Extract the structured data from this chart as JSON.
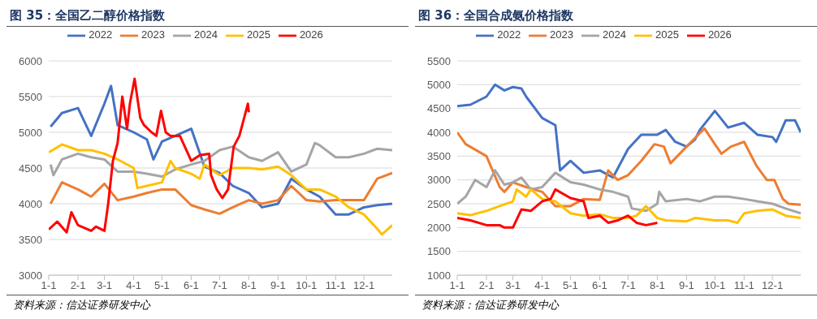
{
  "chart_data": [
    {
      "type": "line",
      "title": "图 35：全国乙二醇价格指数",
      "annotations": [
        "资料来源：信达证券研发中心"
      ],
      "legend": "top",
      "grid": "y",
      "xlim": [
        "--01-01",
        "--12-31"
      ],
      "xticks": [
        {
          "value": "--01-01",
          "label": "1-1"
        },
        {
          "value": "--02-01",
          "label": "2-1"
        },
        {
          "value": "--03-01",
          "label": "3-1"
        },
        {
          "value": "--04-01",
          "label": "4-1"
        },
        {
          "value": "--05-01",
          "label": "5-1"
        },
        {
          "value": "--06-01",
          "label": "6-1"
        },
        {
          "value": "--07-01",
          "label": "7-1"
        },
        {
          "value": "--08-01",
          "label": "8-1"
        },
        {
          "value": "--09-01",
          "label": "9-1"
        },
        {
          "value": "--10-01",
          "label": "10-1"
        },
        {
          "value": "--11-01",
          "label": "11-1"
        },
        {
          "value": "--12-01",
          "label": "12-1"
        }
      ],
      "ylim": [
        3000,
        6000
      ],
      "yticks": [
        3000,
        3500,
        4000,
        4500,
        5000,
        5500,
        6000
      ],
      "series": [
        {
          "name": "2022",
          "color": "#4472c4",
          "x": [
            "--01-03",
            "--01-15",
            "--02-01",
            "--02-15",
            "--03-01",
            "--03-08",
            "--03-15",
            "--04-01",
            "--04-15",
            "--04-22",
            "--05-01",
            "--05-15",
            "--06-01",
            "--06-15",
            "--07-01",
            "--07-15",
            "--08-01",
            "--08-15",
            "--09-01",
            "--09-15",
            "--10-01",
            "--10-15",
            "--11-01",
            "--11-15",
            "--12-01",
            "--12-15",
            "--12-31"
          ],
          "values": [
            5080,
            5270,
            5340,
            4950,
            5400,
            5650,
            5100,
            5000,
            4900,
            4620,
            4870,
            4950,
            5050,
            4520,
            4430,
            4250,
            4150,
            3950,
            4000,
            4350,
            4200,
            4100,
            3850,
            3850,
            3950,
            3980,
            4000
          ]
        },
        {
          "name": "2023",
          "color": "#ed7d31",
          "x": [
            "--01-03",
            "--01-15",
            "--02-01",
            "--02-15",
            "--03-01",
            "--03-15",
            "--04-01",
            "--04-15",
            "--05-01",
            "--05-15",
            "--06-01",
            "--06-15",
            "--07-01",
            "--07-15",
            "--08-01",
            "--08-15",
            "--09-01",
            "--09-15",
            "--10-01",
            "--10-15",
            "--11-01",
            "--11-15",
            "--12-01",
            "--12-15",
            "--12-31"
          ],
          "values": [
            4000,
            4300,
            4200,
            4100,
            4280,
            4050,
            4100,
            4150,
            4200,
            4200,
            3980,
            3920,
            3860,
            3950,
            4050,
            4000,
            4050,
            4250,
            4050,
            4030,
            4050,
            4050,
            4050,
            4350,
            4430
          ]
        },
        {
          "name": "2024",
          "color": "#a5a5a5",
          "x": [
            "--01-03",
            "--01-06",
            "--01-15",
            "--02-01",
            "--02-15",
            "--03-01",
            "--03-15",
            "--04-01",
            "--04-15",
            "--05-01",
            "--05-15",
            "--06-01",
            "--06-15",
            "--07-01",
            "--07-15",
            "--08-01",
            "--08-15",
            "--09-01",
            "--09-15",
            "--10-01",
            "--10-10",
            "--10-15",
            "--11-01",
            "--11-15",
            "--12-01",
            "--12-15",
            "--12-31"
          ],
          "values": [
            4550,
            4400,
            4620,
            4700,
            4650,
            4620,
            4450,
            4450,
            4420,
            4380,
            4480,
            4550,
            4600,
            4750,
            4800,
            4650,
            4600,
            4720,
            4450,
            4550,
            4850,
            4820,
            4650,
            4650,
            4700,
            4770,
            4750
          ]
        },
        {
          "name": "2025",
          "color": "#ffc000",
          "x": [
            "--01-01",
            "--01-15",
            "--02-01",
            "--02-15",
            "--03-01",
            "--03-15",
            "--04-01",
            "--04-05",
            "--04-15",
            "--05-01",
            "--05-10",
            "--05-15",
            "--06-01",
            "--06-10",
            "--06-15",
            "--07-01",
            "--07-15",
            "--08-01",
            "--08-15",
            "--09-01",
            "--09-15",
            "--10-01",
            "--10-15",
            "--11-01",
            "--11-15",
            "--12-01",
            "--12-15",
            "--12-20",
            "--12-31"
          ],
          "values": [
            4720,
            4830,
            4750,
            4750,
            4700,
            4620,
            4500,
            4220,
            4250,
            4300,
            4600,
            4500,
            4420,
            4350,
            4550,
            4400,
            4500,
            4500,
            4480,
            4520,
            4400,
            4200,
            4200,
            4100,
            3950,
            3850,
            3650,
            3570,
            3700
          ]
        },
        {
          "name": "2026",
          "color": "#ff0000",
          "x": [
            "--01-01",
            "--01-10",
            "--01-20",
            "--01-25",
            "--02-01",
            "--02-10",
            "--02-15",
            "--02-20",
            "--03-01",
            "--03-05",
            "--03-10",
            "--03-15",
            "--03-20",
            "--03-25",
            "--03-28",
            "--04-02",
            "--04-08",
            "--04-12",
            "--04-20",
            "--04-25",
            "--04-30",
            "--05-05",
            "--05-10",
            "--05-20",
            "--06-01",
            "--06-10",
            "--06-20",
            "--06-22",
            "--06-28",
            "--07-04",
            "--07-10",
            "--07-16",
            "--07-22",
            "--07-26",
            "--07-31",
            "--08-01"
          ],
          "values": [
            3640,
            3750,
            3600,
            3880,
            3700,
            3650,
            3620,
            3680,
            3620,
            4000,
            4600,
            4850,
            5500,
            5050,
            5400,
            5750,
            5200,
            5100,
            5000,
            4950,
            5300,
            5000,
            4950,
            4950,
            4600,
            4680,
            4700,
            4400,
            4200,
            4080,
            4200,
            4800,
            4950,
            5150,
            5400,
            5280
          ]
        }
      ]
    },
    {
      "type": "line",
      "title": "图 36：全国合成氨价格指数",
      "annotations": [
        "资料来源：信达证券研发中心"
      ],
      "legend": "top",
      "grid": "y",
      "xlim": [
        "--01-01",
        "--12-31"
      ],
      "xticks": [
        {
          "value": "--01-01",
          "label": "1-1"
        },
        {
          "value": "--02-01",
          "label": "2-1"
        },
        {
          "value": "--03-01",
          "label": "3-1"
        },
        {
          "value": "--04-01",
          "label": "4-1"
        },
        {
          "value": "--05-01",
          "label": "5-1"
        },
        {
          "value": "--06-01",
          "label": "6-1"
        },
        {
          "value": "--07-01",
          "label": "7-1"
        },
        {
          "value": "--08-01",
          "label": "8-1"
        },
        {
          "value": "--09-01",
          "label": "9-1"
        },
        {
          "value": "--10-01",
          "label": "10-1"
        },
        {
          "value": "--11-01",
          "label": "11-1"
        },
        {
          "value": "--12-01",
          "label": "12-1"
        }
      ],
      "ylim": [
        1000,
        5500
      ],
      "yticks": [
        1000,
        1500,
        2000,
        2500,
        3000,
        3500,
        4000,
        4500,
        5000,
        5500
      ],
      "series": [
        {
          "name": "2022",
          "color": "#4472c4",
          "x": [
            "--01-01",
            "--01-15",
            "--02-01",
            "--02-10",
            "--02-20",
            "--03-01",
            "--03-10",
            "--03-15",
            "--04-01",
            "--04-15",
            "--04-20",
            "--05-01",
            "--05-15",
            "--06-01",
            "--06-15",
            "--07-01",
            "--07-15",
            "--08-01",
            "--08-10",
            "--08-20",
            "--09-01",
            "--09-10",
            "--09-15",
            "--10-01",
            "--10-15",
            "--11-01",
            "--11-15",
            "--12-01",
            "--12-05",
            "--12-15",
            "--12-25",
            "--12-31"
          ],
          "values": [
            4550,
            4580,
            4750,
            5000,
            4880,
            4950,
            4920,
            4750,
            4300,
            4150,
            3200,
            3400,
            3150,
            3200,
            3050,
            3650,
            3950,
            3950,
            4050,
            3800,
            3700,
            3850,
            4050,
            4450,
            4100,
            4200,
            3950,
            3900,
            3800,
            4250,
            4250,
            4000
          ]
        },
        {
          "name": "2023",
          "color": "#ed7d31",
          "x": [
            "--01-01",
            "--01-10",
            "--02-01",
            "--02-15",
            "--02-20",
            "--03-01",
            "--03-15",
            "--04-01",
            "--04-15",
            "--05-01",
            "--05-15",
            "--06-01",
            "--06-10",
            "--06-20",
            "--07-01",
            "--07-15",
            "--07-29",
            "--08-08",
            "--08-15",
            "--09-01",
            "--09-20",
            "--10-01",
            "--10-08",
            "--10-18",
            "--11-01",
            "--11-14",
            "--11-25",
            "--12-03",
            "--12-12",
            "--12-18",
            "--12-31"
          ],
          "values": [
            4000,
            3750,
            3500,
            2850,
            2750,
            2950,
            2850,
            2750,
            2450,
            2450,
            2600,
            2580,
            3200,
            3000,
            3100,
            3400,
            3750,
            3700,
            3350,
            3700,
            4080,
            3750,
            3550,
            3700,
            3800,
            3300,
            3000,
            3000,
            2600,
            2500,
            2480
          ]
        },
        {
          "name": "2024",
          "color": "#a5a5a5",
          "x": [
            "--01-01",
            "--01-10",
            "--01-20",
            "--02-01",
            "--02-10",
            "--02-20",
            "--03-01",
            "--03-10",
            "--03-20",
            "--04-01",
            "--04-15",
            "--05-01",
            "--05-15",
            "--06-01",
            "--06-15",
            "--07-01",
            "--07-05",
            "--07-20",
            "--08-01",
            "--08-03",
            "--08-10",
            "--09-01",
            "--09-15",
            "--10-01",
            "--10-15",
            "--11-01",
            "--11-15",
            "--12-01",
            "--12-15",
            "--12-31"
          ],
          "values": [
            2500,
            2650,
            3000,
            2850,
            3200,
            2900,
            2950,
            3050,
            2800,
            2850,
            3150,
            2950,
            2900,
            2800,
            2750,
            2650,
            2400,
            2350,
            2500,
            2750,
            2550,
            2600,
            2550,
            2650,
            2650,
            2600,
            2550,
            2500,
            2400,
            2300
          ]
        },
        {
          "name": "2025",
          "color": "#ffc000",
          "x": [
            "--01-01",
            "--01-15",
            "--02-01",
            "--02-15",
            "--03-01",
            "--03-05",
            "--03-15",
            "--03-20",
            "--04-01",
            "--04-15",
            "--05-01",
            "--05-15",
            "--06-01",
            "--06-15",
            "--07-01",
            "--07-10",
            "--07-20",
            "--08-01",
            "--08-10",
            "--09-01",
            "--09-10",
            "--10-01",
            "--10-15",
            "--10-25",
            "--11-01",
            "--11-15",
            "--12-01",
            "--12-15",
            "--12-31"
          ],
          "values": [
            2300,
            2260,
            2350,
            2450,
            2550,
            2800,
            2650,
            2800,
            2600,
            2550,
            2300,
            2250,
            2280,
            2200,
            2200,
            2250,
            2450,
            2200,
            2150,
            2130,
            2200,
            2150,
            2150,
            2100,
            2300,
            2350,
            2380,
            2250,
            2200
          ]
        },
        {
          "name": "2026",
          "color": "#ff0000",
          "x": [
            "--01-01",
            "--01-15",
            "--02-01",
            "--02-15",
            "--02-20",
            "--03-01",
            "--03-10",
            "--03-20",
            "--04-01",
            "--04-10",
            "--04-15",
            "--05-01",
            "--05-15",
            "--05-20",
            "--06-01",
            "--06-10",
            "--06-20",
            "--07-01",
            "--07-10",
            "--07-20",
            "--08-01"
          ],
          "values": [
            2200,
            2150,
            2050,
            2050,
            2000,
            2000,
            2380,
            2350,
            2550,
            2600,
            2800,
            2620,
            2550,
            2200,
            2250,
            2100,
            2150,
            2250,
            2100,
            2050,
            2100
          ]
        }
      ]
    }
  ]
}
